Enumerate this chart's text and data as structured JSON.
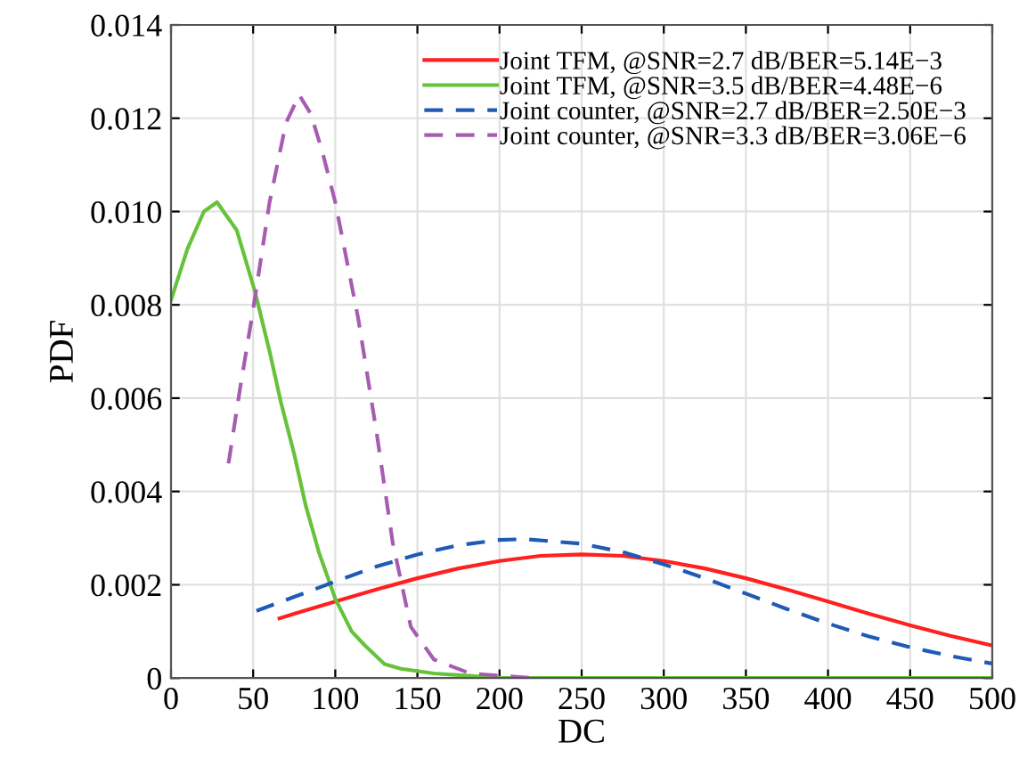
{
  "chart_data": {
    "type": "line",
    "xlabel": "DC",
    "ylabel": "PDF",
    "xlim": [
      0,
      500
    ],
    "ylim": [
      0,
      0.014
    ],
    "xticks": [
      0,
      50,
      100,
      150,
      200,
      250,
      300,
      350,
      400,
      450,
      500
    ],
    "yticks": [
      0,
      {
        "value": 0.002,
        "label": "0.002"
      },
      {
        "value": 0.004,
        "label": "0.004"
      },
      {
        "value": 0.006,
        "label": "0.006"
      },
      {
        "value": 0.008,
        "label": "0.008"
      },
      {
        "value": 0.01,
        "label": "0.010"
      },
      {
        "value": 0.012,
        "label": "0.012"
      },
      {
        "value": 0.014,
        "label": "0.014"
      }
    ],
    "grid": true,
    "legend": "top right",
    "marker": "none",
    "series": [
      {
        "name": "Joint TFM, @SNR=2.7 dB/BER=5.14E−3",
        "color": "#ff2020",
        "line_style": "solid",
        "x": [
          66,
          75,
          100,
          125,
          150,
          175,
          200,
          225,
          250,
          275,
          300,
          325,
          350,
          375,
          400,
          425,
          450,
          475,
          500
        ],
        "values": [
          0.00128,
          0.00138,
          0.00164,
          0.0019,
          0.00214,
          0.00235,
          0.00251,
          0.00262,
          0.00265,
          0.00262,
          0.00251,
          0.00235,
          0.00214,
          0.0019,
          0.00164,
          0.00138,
          0.00113,
          0.0009,
          0.0007
        ]
      },
      {
        "name": "Joint TFM, @SNR=3.5 dB/BER=4.48E−6",
        "color": "#66c23a",
        "line_style": "solid",
        "x": [
          0,
          10,
          20,
          28,
          40,
          51,
          60,
          67,
          75,
          82,
          90,
          100,
          110,
          118,
          130,
          140,
          160,
          200,
          300,
          400,
          500
        ],
        "values": [
          0.0081,
          0.0092,
          0.01,
          0.0102,
          0.0096,
          0.0083,
          0.007,
          0.0059,
          0.0048,
          0.0037,
          0.0027,
          0.0017,
          0.001,
          0.0007,
          0.0003,
          0.0002,
          0.0001,
          0,
          0,
          0,
          0
        ]
      },
      {
        "name": "Joint counter, @SNR=2.7 dB/BER=2.50E−3",
        "color": "#1f5bb5",
        "line_style": "dashed",
        "x": [
          52,
          75,
          100,
          125,
          150,
          175,
          200,
          215,
          250,
          275,
          300,
          325,
          350,
          375,
          400,
          425,
          450,
          475,
          500
        ],
        "values": [
          0.00144,
          0.00174,
          0.00207,
          0.00239,
          0.00265,
          0.00285,
          0.00296,
          0.00298,
          0.00288,
          0.0027,
          0.00244,
          0.00214,
          0.00181,
          0.00148,
          0.00117,
          0.00089,
          0.00066,
          0.00047,
          0.00031
        ]
      },
      {
        "name": "Joint counter, @SNR=3.3 dB/BER=3.06E−6",
        "color": "#a65db0",
        "line_style": "dashed",
        "x": [
          35,
          42,
          50,
          60,
          70,
          78,
          85,
          92,
          100,
          114,
          125,
          135,
          146,
          160,
          182,
          220
        ],
        "values": [
          0.0046,
          0.0062,
          0.0079,
          0.0102,
          0.0119,
          0.0125,
          0.0121,
          0.0113,
          0.0102,
          0.0077,
          0.0053,
          0.0029,
          0.0011,
          0.0004,
          0.0001,
          0
        ]
      }
    ]
  }
}
